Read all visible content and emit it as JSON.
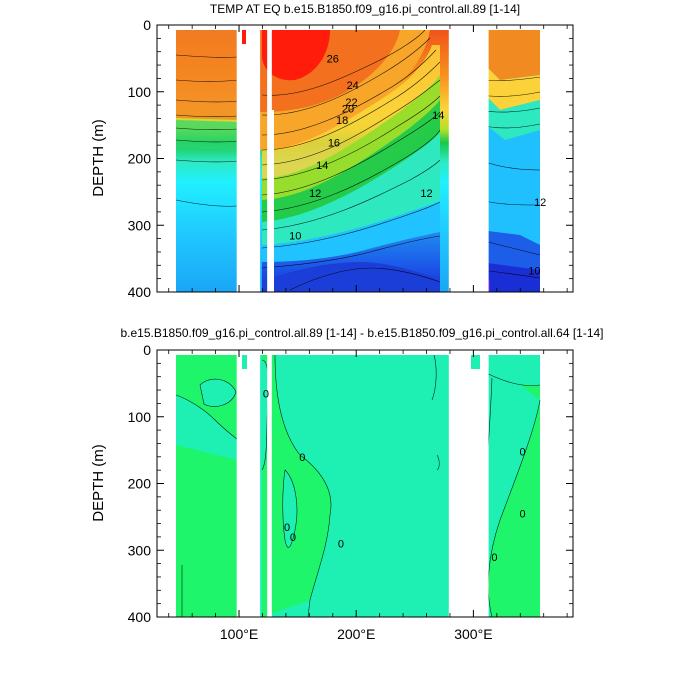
{
  "chart_data": [
    {
      "type": "heatmap",
      "title": "TEMP AT EQ b.e15.B1850.f09_g16.pi_control.all.89 [1-14]",
      "ylabel": "DEPTH (m)",
      "xlabel": "",
      "ylim": [
        400,
        0
      ],
      "xlim": [
        30,
        385
      ],
      "y_ticks": [
        {
          "v": 0,
          "label": "0"
        },
        {
          "v": 100,
          "label": "100"
        },
        {
          "v": 200,
          "label": "200"
        },
        {
          "v": 300,
          "label": "300"
        },
        {
          "v": 400,
          "label": "400"
        }
      ],
      "x_ticks": [
        {
          "v": 100,
          "label": ""
        },
        {
          "v": 200,
          "label": ""
        },
        {
          "v": 300,
          "label": ""
        }
      ],
      "land_gaps": [
        [
          98,
          118
        ],
        [
          124,
          128
        ],
        [
          279,
          313
        ],
        [
          368,
          385
        ]
      ],
      "contour_labels": [
        {
          "x": 180,
          "y": 50,
          "label": "26"
        },
        {
          "x": 197,
          "y": 90,
          "label": "24"
        },
        {
          "x": 196,
          "y": 115,
          "label": "22"
        },
        {
          "x": 193,
          "y": 125,
          "label": "20"
        },
        {
          "x": 188,
          "y": 142,
          "label": "18"
        },
        {
          "x": 181,
          "y": 176,
          "label": "16"
        },
        {
          "x": 171,
          "y": 210,
          "label": "14"
        },
        {
          "x": 270,
          "y": 135,
          "label": "14"
        },
        {
          "x": 165,
          "y": 252,
          "label": "12"
        },
        {
          "x": 260,
          "y": 252,
          "label": "12"
        },
        {
          "x": 357,
          "y": 265,
          "label": "12"
        },
        {
          "x": 148,
          "y": 315,
          "label": "10"
        },
        {
          "x": 352,
          "y": 368,
          "label": "10"
        }
      ]
    },
    {
      "type": "heatmap",
      "title": "b.e15.B1850.f09_g16.pi_control.all.89 [1-14] - b.e15.B1850.f09_g16.pi_control.all.64 [1-14]",
      "ylabel": "DEPTH (m)",
      "xlabel": "",
      "ylim": [
        400,
        0
      ],
      "xlim": [
        30,
        385
      ],
      "y_ticks": [
        {
          "v": 0,
          "label": "0"
        },
        {
          "v": 100,
          "label": "100"
        },
        {
          "v": 200,
          "label": "200"
        },
        {
          "v": 300,
          "label": "300"
        },
        {
          "v": 400,
          "label": "400"
        }
      ],
      "x_ticks": [
        {
          "v": 100,
          "label": "100°E"
        },
        {
          "v": 200,
          "label": "200°E"
        },
        {
          "v": 300,
          "label": "300°E"
        }
      ],
      "land_gaps": [
        [
          98,
          118
        ],
        [
          124,
          128
        ],
        [
          279,
          313
        ],
        [
          368,
          385
        ]
      ],
      "contour_labels": [
        {
          "x": 123,
          "y": 65,
          "label": "0"
        },
        {
          "x": 154,
          "y": 160,
          "label": "0"
        },
        {
          "x": 141,
          "y": 265,
          "label": "0"
        },
        {
          "x": 146,
          "y": 280,
          "label": "0"
        },
        {
          "x": 187,
          "y": 290,
          "label": "0"
        },
        {
          "x": 342,
          "y": 152,
          "label": "0"
        },
        {
          "x": 342,
          "y": 245,
          "label": "0"
        },
        {
          "x": 318,
          "y": 310,
          "label": "0"
        }
      ]
    }
  ]
}
